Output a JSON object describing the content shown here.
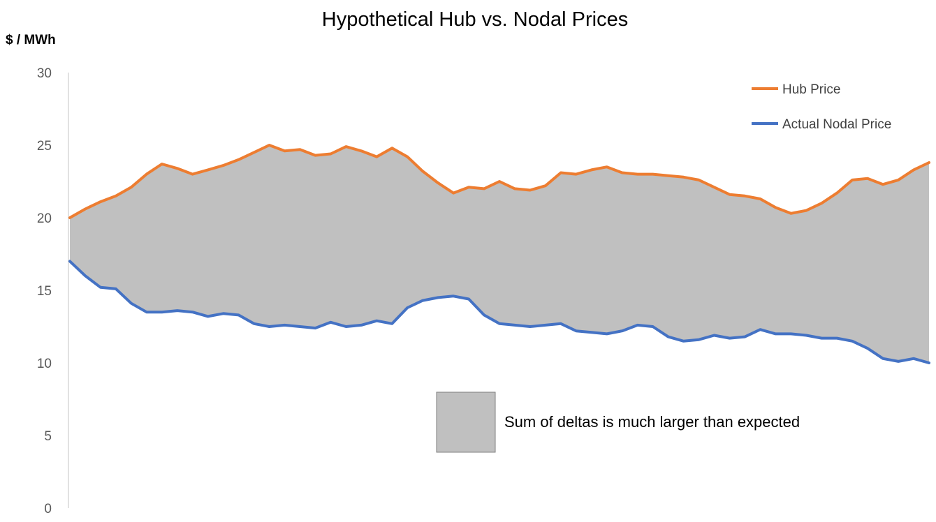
{
  "chart_data": {
    "type": "line",
    "title": "Hypothetical Hub vs. Nodal Prices",
    "xlabel": "",
    "ylabel": "$ / MWh",
    "ylim": [
      0,
      30
    ],
    "yticks": [
      "0",
      "5",
      "10",
      "15",
      "20",
      "25",
      "30"
    ],
    "grid": false,
    "legend_position": "top-right",
    "area_between_series": true,
    "area_color": "#c0c0c0",
    "series": [
      {
        "name": "Hub Price",
        "color": "#ed7d31",
        "values": [
          20.0,
          20.6,
          21.1,
          21.5,
          22.1,
          23.0,
          23.7,
          23.4,
          23.0,
          23.3,
          23.6,
          24.0,
          24.5,
          25.0,
          24.6,
          24.7,
          24.3,
          24.4,
          24.9,
          24.6,
          24.2,
          24.8,
          24.2,
          23.2,
          22.4,
          21.7,
          22.1,
          22.0,
          22.5,
          22.0,
          21.9,
          22.2,
          23.1,
          23.0,
          23.3,
          23.5,
          23.1,
          23.0,
          23.0,
          22.9,
          22.8,
          22.6,
          22.1,
          21.6,
          21.5,
          21.3,
          20.7,
          20.3,
          20.5,
          21.0,
          21.7,
          22.6,
          22.7,
          22.3,
          22.6,
          23.3,
          23.8
        ]
      },
      {
        "name": "Actual Nodal Price",
        "color": "#4472c4",
        "values": [
          17.0,
          16.0,
          15.2,
          15.1,
          14.1,
          13.5,
          13.5,
          13.6,
          13.5,
          13.2,
          13.4,
          13.3,
          12.7,
          12.5,
          12.6,
          12.5,
          12.4,
          12.8,
          12.5,
          12.6,
          12.9,
          12.7,
          13.8,
          14.3,
          14.5,
          14.6,
          14.4,
          13.3,
          12.7,
          12.6,
          12.5,
          12.6,
          12.7,
          12.2,
          12.1,
          12.0,
          12.2,
          12.6,
          12.5,
          11.8,
          11.5,
          11.6,
          11.9,
          11.7,
          11.8,
          12.3,
          12.0,
          12.0,
          11.9,
          11.7,
          11.7,
          11.5,
          11.0,
          10.3,
          10.1,
          10.3,
          10.0
        ]
      }
    ],
    "annotation": "Sum of deltas is much larger than expected"
  }
}
